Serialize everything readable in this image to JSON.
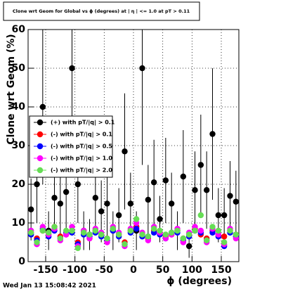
{
  "chart_data": {
    "type": "scatter",
    "title": "Clone wrt Geom for Global vs ϕ (degrees) at | η | <= 1.0 at pT > 0.11",
    "x_label": "ϕ (degrees)",
    "y_label": "Clone wrt Geom (%)",
    "footer": "Wed Jan 13 15:08:42 2021",
    "xlim": [
      -180,
      180
    ],
    "xticks": [
      -150,
      -100,
      -50,
      0,
      50,
      100,
      150
    ],
    "ylim": [
      0,
      60
    ],
    "yticks": [
      0,
      10,
      20,
      30,
      40,
      50,
      60
    ],
    "grid": true,
    "legend": "upper-left",
    "x": [
      -175,
      -165,
      -155,
      -145,
      -135,
      -125,
      -115,
      -105,
      -95,
      -85,
      -75,
      -65,
      -55,
      -45,
      -35,
      -25,
      -15,
      -5,
      5,
      15,
      25,
      35,
      45,
      55,
      65,
      75,
      85,
      95,
      105,
      115,
      125,
      135,
      145,
      155,
      165,
      175
    ],
    "series": [
      {
        "name": "(+) with pT/|q| > 0.1",
        "color": "#000000",
        "values": [
          13.5,
          20,
          40,
          8,
          16.5,
          15,
          18,
          50,
          20,
          8,
          7,
          16.5,
          13,
          15,
          8,
          12,
          28.5,
          15,
          8,
          50,
          16,
          20.5,
          11,
          21,
          15,
          8,
          22,
          4,
          18.5,
          25,
          18.5,
          33,
          12,
          12,
          17,
          15.5
        ],
        "errors": [
          8,
          10,
          20,
          5,
          9,
          8,
          10,
          25,
          10,
          5,
          4,
          9,
          8,
          9,
          5,
          7,
          15,
          8,
          5,
          25,
          9,
          11,
          6,
          11,
          8,
          5,
          12,
          3,
          10,
          13,
          10,
          17,
          7,
          7,
          9,
          8
        ]
      },
      {
        "name": "(-) with pT/|q| > 0.1",
        "color": "#ff0000",
        "values": [
          7.5,
          6,
          8,
          7,
          9,
          6.5,
          7,
          8,
          5,
          7.5,
          6,
          8,
          7,
          6,
          8.5,
          7,
          5,
          8,
          9,
          7,
          6,
          8,
          7.5,
          6.5,
          7,
          8,
          6,
          7,
          8.5,
          7,
          6,
          8,
          7,
          6.5,
          8,
          7
        ]
      },
      {
        "name": "(-) with pT/|q| > 0.5",
        "color": "#0000ff",
        "values": [
          7,
          5.5,
          8.5,
          6.5,
          8,
          6,
          7.5,
          7.5,
          4.5,
          7,
          6.5,
          7.5,
          6.5,
          5.5,
          8,
          6.5,
          4.5,
          7.5,
          8.5,
          6.5,
          6.5,
          7.5,
          7,
          6,
          7.5,
          7.5,
          5.5,
          6.5,
          8,
          7.5,
          5.5,
          7.5,
          6.5,
          4,
          7.5,
          6.5
        ]
      },
      {
        "name": "(-) with pT/|q| > 1.0",
        "color": "#ff00ff",
        "values": [
          8,
          4.5,
          9,
          7,
          8.5,
          5.5,
          7,
          9,
          4,
          8,
          6,
          8.5,
          7.5,
          5,
          9,
          7.5,
          4,
          8.5,
          10,
          7.5,
          5.5,
          9,
          7.5,
          6,
          7,
          8.5,
          5,
          7.5,
          9,
          8,
          5,
          8.5,
          7,
          4.5,
          8.5,
          6
        ]
      },
      {
        "name": "(-) with pT/|q| > 2.0",
        "color": "#66dd55",
        "values": [
          7.5,
          5,
          8,
          7.5,
          9,
          6,
          8,
          8,
          3.5,
          7.5,
          7,
          8,
          7,
          6,
          8.5,
          7,
          4.5,
          8,
          11,
          7,
          6.5,
          8.5,
          8,
          7,
          7.5,
          8,
          6,
          7,
          8,
          12,
          5.5,
          9,
          8,
          5,
          8,
          7
        ]
      }
    ]
  }
}
